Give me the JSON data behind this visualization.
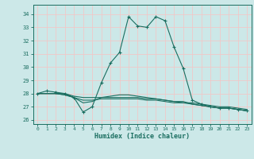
{
  "xlabel": "Humidex (Indice chaleur)",
  "bg_color": "#cce8e8",
  "grid_color": "#f0c8c8",
  "line_color": "#1a6e60",
  "xlim": [
    -0.5,
    23.5
  ],
  "ylim": [
    25.7,
    34.7
  ],
  "yticks": [
    26,
    27,
    28,
    29,
    30,
    31,
    32,
    33,
    34
  ],
  "xticks": [
    0,
    1,
    2,
    3,
    4,
    5,
    6,
    7,
    8,
    9,
    10,
    11,
    12,
    13,
    14,
    15,
    16,
    17,
    18,
    19,
    20,
    21,
    22,
    23
  ],
  "line1_x": [
    0,
    1,
    2,
    3,
    4,
    5,
    6,
    7,
    8,
    9,
    10,
    11,
    12,
    13,
    14,
    15,
    16,
    17,
    18,
    19,
    20,
    21,
    22,
    23
  ],
  "line1_y": [
    28.0,
    28.2,
    28.1,
    28.0,
    27.7,
    26.6,
    27.0,
    28.8,
    30.3,
    31.1,
    33.8,
    33.1,
    33.0,
    33.8,
    33.5,
    31.5,
    29.9,
    27.5,
    27.2,
    27.0,
    26.9,
    26.9,
    26.8,
    26.7
  ],
  "line2_x": [
    0,
    1,
    2,
    3,
    4,
    5,
    6,
    7,
    8,
    9,
    10,
    11,
    12,
    13,
    14,
    15,
    16,
    17,
    18,
    19,
    20,
    21,
    22,
    23
  ],
  "line2_y": [
    28.0,
    28.0,
    28.0,
    28.0,
    27.8,
    27.7,
    27.7,
    27.7,
    27.7,
    27.7,
    27.7,
    27.7,
    27.6,
    27.6,
    27.5,
    27.4,
    27.3,
    27.3,
    27.2,
    27.1,
    27.0,
    27.0,
    26.9,
    26.8
  ],
  "line3_x": [
    0,
    1,
    2,
    3,
    4,
    5,
    6,
    7,
    8,
    9,
    10,
    11,
    12,
    13,
    14,
    15,
    16,
    17,
    18,
    19,
    20,
    21,
    22,
    23
  ],
  "line3_y": [
    28.0,
    28.0,
    28.0,
    27.9,
    27.7,
    27.5,
    27.5,
    27.6,
    27.6,
    27.6,
    27.6,
    27.6,
    27.5,
    27.5,
    27.4,
    27.3,
    27.3,
    27.2,
    27.1,
    27.0,
    26.9,
    26.9,
    26.8,
    26.7
  ],
  "line4_x": [
    0,
    1,
    2,
    3,
    4,
    5,
    6,
    7,
    8,
    9,
    10,
    11,
    12,
    13,
    14,
    15,
    16,
    17,
    18,
    19,
    20,
    21,
    22,
    23
  ],
  "line4_y": [
    28.0,
    28.0,
    28.0,
    27.9,
    27.7,
    27.3,
    27.4,
    27.7,
    27.8,
    27.9,
    27.9,
    27.8,
    27.7,
    27.6,
    27.5,
    27.4,
    27.4,
    27.2,
    27.1,
    27.0,
    26.9,
    26.9,
    26.8,
    26.7
  ]
}
